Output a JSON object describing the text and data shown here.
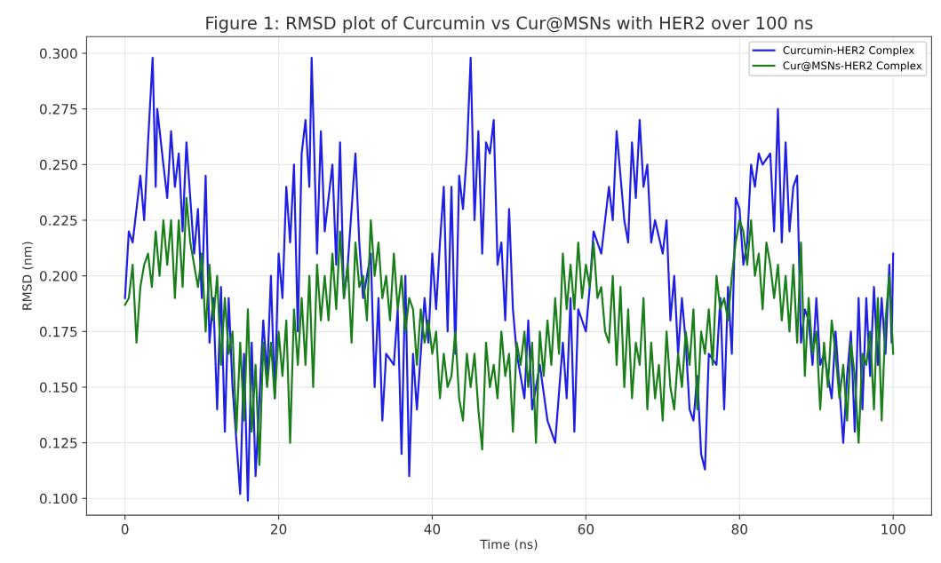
{
  "chart_data": {
    "type": "line",
    "title": "Figure 1: RMSD plot of Curcumin vs Cur@MSNs with HER2 over 100 ns",
    "xlabel": "Time (ns)",
    "ylabel": "RMSD (nm)",
    "xlim": [
      -5,
      105
    ],
    "ylim": [
      0.0925,
      0.3075
    ],
    "xticks": [
      0,
      20,
      40,
      60,
      80,
      100
    ],
    "yticks": [
      {
        "value": 0.1,
        "label": "0.100"
      },
      {
        "value": 0.125,
        "label": "0.125"
      },
      {
        "value": 0.15,
        "label": "0.150"
      },
      {
        "value": 0.175,
        "label": "0.175"
      },
      {
        "value": 0.2,
        "label": "0.200"
      },
      {
        "value": 0.225,
        "label": "0.225"
      },
      {
        "value": 0.25,
        "label": "0.250"
      },
      {
        "value": 0.275,
        "label": "0.275"
      },
      {
        "value": 0.3,
        "label": "0.300"
      }
    ],
    "grid": true,
    "legend": "top right",
    "marker": "none",
    "line_style": "solid",
    "series": [
      {
        "name": "Curcumin-HER2 Complex",
        "color": "#1f1fe6",
        "x": [
          0,
          0.5,
          1,
          2,
          2.5,
          3,
          3.6,
          4,
          4.2,
          5,
          5.5,
          6,
          6.5,
          7,
          7.5,
          8,
          9,
          9.5,
          10,
          10.5,
          11,
          11.5,
          12,
          12.5,
          13,
          13.5,
          14,
          15,
          15.5,
          16,
          16.5,
          17,
          18,
          18.5,
          19,
          19.5,
          20,
          20.5,
          21,
          21.5,
          22,
          22.5,
          23,
          23.5,
          24,
          24.3,
          25,
          25.5,
          26,
          27,
          27.5,
          28,
          28.5,
          29,
          30,
          30.5,
          31,
          32,
          32.5,
          33,
          33.5,
          34,
          35,
          35.5,
          36,
          36.5,
          37,
          37.5,
          38,
          39,
          39.5,
          40,
          40.5,
          41,
          41.5,
          42,
          42.5,
          43,
          43.5,
          44,
          44.5,
          45,
          45.5,
          46,
          46.5,
          47,
          47.5,
          48,
          48.5,
          49,
          49.5,
          50,
          50.5,
          51,
          52,
          52.5,
          53,
          54,
          55,
          56,
          57,
          57.5,
          58,
          58.5,
          59,
          60,
          60.5,
          61,
          62,
          63,
          63.5,
          64,
          65,
          65.5,
          66,
          66.5,
          67,
          67.5,
          68,
          68.5,
          69,
          70,
          70.5,
          71,
          71.5,
          72,
          72.5,
          73,
          73.5,
          74,
          74.5,
          75,
          75.5,
          76,
          77,
          77.5,
          78,
          78.5,
          79,
          79.5,
          80,
          80.5,
          81,
          81.5,
          82,
          82.5,
          83,
          84,
          84.5,
          85,
          85.5,
          86,
          86.5,
          87,
          87.5,
          88,
          88.5,
          89,
          89.5,
          90,
          90.5,
          91,
          92,
          92.5,
          93.5,
          94,
          94.5,
          95,
          95.5,
          96,
          96.5,
          97,
          97.5,
          98,
          98.5,
          99,
          99.5,
          99.8,
          100
        ],
        "values": [
          0.19,
          0.22,
          0.215,
          0.245,
          0.225,
          0.26,
          0.298,
          0.24,
          0.275,
          0.25,
          0.235,
          0.265,
          0.24,
          0.255,
          0.22,
          0.26,
          0.21,
          0.23,
          0.19,
          0.245,
          0.17,
          0.19,
          0.14,
          0.195,
          0.13,
          0.19,
          0.15,
          0.102,
          0.165,
          0.099,
          0.17,
          0.11,
          0.18,
          0.155,
          0.2,
          0.145,
          0.21,
          0.19,
          0.24,
          0.215,
          0.25,
          0.175,
          0.255,
          0.27,
          0.24,
          0.298,
          0.21,
          0.265,
          0.22,
          0.25,
          0.205,
          0.26,
          0.19,
          0.205,
          0.255,
          0.215,
          0.19,
          0.21,
          0.15,
          0.19,
          0.135,
          0.165,
          0.16,
          0.185,
          0.12,
          0.2,
          0.11,
          0.165,
          0.14,
          0.19,
          0.17,
          0.21,
          0.185,
          0.215,
          0.24,
          0.175,
          0.24,
          0.165,
          0.245,
          0.23,
          0.255,
          0.298,
          0.225,
          0.265,
          0.21,
          0.26,
          0.255,
          0.27,
          0.205,
          0.215,
          0.18,
          0.23,
          0.185,
          0.165,
          0.145,
          0.18,
          0.14,
          0.16,
          0.135,
          0.125,
          0.17,
          0.145,
          0.19,
          0.13,
          0.185,
          0.175,
          0.195,
          0.22,
          0.21,
          0.24,
          0.225,
          0.265,
          0.225,
          0.215,
          0.26,
          0.235,
          0.27,
          0.24,
          0.25,
          0.215,
          0.225,
          0.21,
          0.225,
          0.18,
          0.2,
          0.165,
          0.19,
          0.17,
          0.14,
          0.135,
          0.155,
          0.12,
          0.113,
          0.165,
          0.16,
          0.19,
          0.14,
          0.195,
          0.165,
          0.235,
          0.23,
          0.205,
          0.215,
          0.25,
          0.24,
          0.255,
          0.25,
          0.255,
          0.22,
          0.275,
          0.215,
          0.26,
          0.22,
          0.24,
          0.245,
          0.17,
          0.185,
          0.18,
          0.16,
          0.19,
          0.16,
          0.165,
          0.145,
          0.175,
          0.125,
          0.155,
          0.175,
          0.13,
          0.19,
          0.14,
          0.19,
          0.155,
          0.195,
          0.16,
          0.19,
          0.165,
          0.205,
          0.17,
          0.21
        ]
      },
      {
        "name": "Cur@MSNs-HER2 Complex",
        "color": "#1a7f1a",
        "x": [
          0,
          0.5,
          1,
          1.5,
          2,
          2.5,
          3,
          3.5,
          4,
          4.5,
          5,
          5.5,
          6,
          6.5,
          7,
          7.5,
          8,
          8.5,
          9,
          9.5,
          10,
          10.5,
          11,
          11.5,
          12,
          12.5,
          13,
          13.5,
          14,
          14.5,
          15,
          15.5,
          16,
          16.5,
          17,
          17.5,
          18,
          18.5,
          19,
          19.5,
          20,
          20.5,
          21,
          21.5,
          22,
          22.5,
          23,
          23.5,
          24,
          24.5,
          25,
          25.5,
          26,
          26.5,
          27,
          27.5,
          28,
          28.5,
          29,
          29.5,
          30,
          30.5,
          31,
          31.5,
          32,
          32.5,
          33,
          33.5,
          34,
          34.5,
          35,
          35.5,
          36,
          36.5,
          37,
          37.5,
          38,
          38.5,
          39,
          39.5,
          40,
          40.5,
          41,
          41.5,
          42,
          42.5,
          43,
          43.5,
          44,
          44.5,
          45,
          45.5,
          46,
          46.5,
          47,
          47.5,
          48,
          48.5,
          49,
          49.5,
          50,
          50.5,
          51,
          51.5,
          52,
          52.5,
          53,
          53.5,
          54,
          54.5,
          55,
          55.5,
          56,
          56.5,
          57,
          57.5,
          58,
          58.5,
          59,
          59.5,
          60,
          60.5,
          61,
          61.5,
          62,
          62.5,
          63,
          63.5,
          64,
          64.5,
          65,
          65.5,
          66,
          66.5,
          67,
          67.5,
          68,
          68.5,
          69,
          69.5,
          70,
          70.5,
          71,
          71.5,
          72,
          72.5,
          73,
          73.5,
          74,
          74.5,
          75,
          75.5,
          76,
          76.5,
          77,
          77.5,
          78,
          78.5,
          79,
          79.5,
          80,
          80.5,
          81,
          81.5,
          82,
          82.5,
          83,
          83.5,
          84,
          84.5,
          85,
          85.5,
          86,
          86.5,
          87,
          87.5,
          88,
          88.5,
          89,
          89.5,
          90,
          90.5,
          91,
          91.5,
          92,
          92.5,
          93,
          93.5,
          94,
          94.5,
          95,
          95.5,
          96,
          96.5,
          97,
          97.5,
          98,
          98.5,
          99,
          99.5,
          100
        ],
        "values": [
          0.187,
          0.19,
          0.205,
          0.17,
          0.195,
          0.205,
          0.21,
          0.195,
          0.22,
          0.2,
          0.225,
          0.205,
          0.225,
          0.19,
          0.225,
          0.195,
          0.235,
          0.215,
          0.205,
          0.195,
          0.21,
          0.175,
          0.205,
          0.18,
          0.2,
          0.16,
          0.19,
          0.165,
          0.175,
          0.13,
          0.17,
          0.135,
          0.185,
          0.13,
          0.16,
          0.115,
          0.17,
          0.15,
          0.17,
          0.145,
          0.175,
          0.155,
          0.18,
          0.125,
          0.185,
          0.16,
          0.19,
          0.16,
          0.2,
          0.15,
          0.205,
          0.18,
          0.2,
          0.18,
          0.21,
          0.185,
          0.22,
          0.19,
          0.205,
          0.17,
          0.215,
          0.195,
          0.2,
          0.18,
          0.225,
          0.2,
          0.215,
          0.19,
          0.2,
          0.18,
          0.21,
          0.185,
          0.2,
          0.175,
          0.19,
          0.185,
          0.16,
          0.185,
          0.17,
          0.18,
          0.165,
          0.175,
          0.145,
          0.165,
          0.15,
          0.155,
          0.175,
          0.145,
          0.135,
          0.165,
          0.15,
          0.165,
          0.14,
          0.122,
          0.17,
          0.15,
          0.16,
          0.145,
          0.175,
          0.155,
          0.165,
          0.13,
          0.17,
          0.16,
          0.175,
          0.15,
          0.17,
          0.125,
          0.175,
          0.155,
          0.18,
          0.16,
          0.19,
          0.165,
          0.21,
          0.185,
          0.205,
          0.185,
          0.215,
          0.19,
          0.205,
          0.195,
          0.215,
          0.19,
          0.195,
          0.175,
          0.17,
          0.2,
          0.16,
          0.195,
          0.15,
          0.185,
          0.145,
          0.17,
          0.16,
          0.19,
          0.14,
          0.17,
          0.145,
          0.16,
          0.135,
          0.175,
          0.15,
          0.14,
          0.165,
          0.15,
          0.175,
          0.16,
          0.185,
          0.14,
          0.175,
          0.165,
          0.185,
          0.16,
          0.2,
          0.185,
          0.19,
          0.18,
          0.2,
          0.215,
          0.225,
          0.22,
          0.205,
          0.225,
          0.2,
          0.21,
          0.185,
          0.215,
          0.205,
          0.19,
          0.205,
          0.18,
          0.2,
          0.175,
          0.205,
          0.17,
          0.215,
          0.155,
          0.19,
          0.165,
          0.175,
          0.14,
          0.17,
          0.15,
          0.18,
          0.165,
          0.145,
          0.16,
          0.135,
          0.17,
          0.155,
          0.125,
          0.165,
          0.16,
          0.175,
          0.14,
          0.19,
          0.135,
          0.18,
          0.2,
          0.165
        ]
      }
    ]
  }
}
